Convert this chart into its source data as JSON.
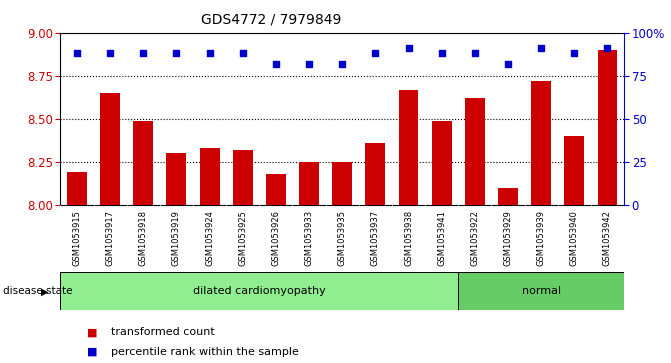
{
  "title": "GDS4772 / 7979849",
  "samples": [
    "GSM1053915",
    "GSM1053917",
    "GSM1053918",
    "GSM1053919",
    "GSM1053924",
    "GSM1053925",
    "GSM1053926",
    "GSM1053933",
    "GSM1053935",
    "GSM1053937",
    "GSM1053938",
    "GSM1053941",
    "GSM1053922",
    "GSM1053929",
    "GSM1053939",
    "GSM1053940",
    "GSM1053942"
  ],
  "bar_values": [
    8.19,
    8.65,
    8.49,
    8.3,
    8.33,
    8.32,
    8.18,
    8.25,
    8.25,
    8.36,
    8.67,
    8.49,
    8.62,
    8.1,
    8.72,
    8.4,
    8.9
  ],
  "dot_values": [
    8.88,
    8.88,
    8.88,
    8.88,
    8.88,
    8.88,
    8.82,
    8.82,
    8.82,
    8.88,
    8.91,
    8.88,
    8.88,
    8.82,
    8.91,
    8.88,
    8.91
  ],
  "disease_groups": [
    {
      "label": "dilated cardiomyopathy",
      "start": 0,
      "end": 11,
      "color": "#90EE90"
    },
    {
      "label": "normal",
      "start": 12,
      "end": 16,
      "color": "#66CC66"
    }
  ],
  "bar_color": "#CC0000",
  "dot_color": "#0000CC",
  "ylim_left": [
    8.0,
    9.0
  ],
  "ylim_right": [
    0,
    100
  ],
  "yticks_left": [
    8.0,
    8.25,
    8.5,
    8.75,
    9.0
  ],
  "yticks_right": [
    0,
    25,
    50,
    75,
    100
  ],
  "disease_label": "disease state",
  "legend_bar": "transformed count",
  "legend_dot": "percentile rank within the sample",
  "bar_color_hex": "#CC0000",
  "dot_color_hex": "#0000CC",
  "label_bg_color": "#D3D3D3",
  "grid_lines": [
    8.25,
    8.5,
    8.75
  ]
}
